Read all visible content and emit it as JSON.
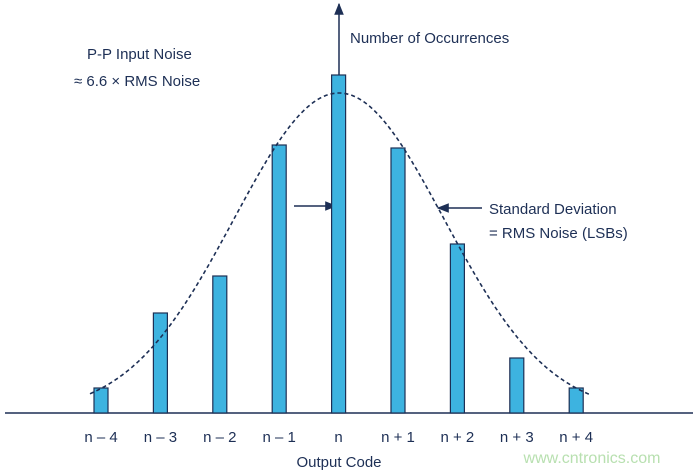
{
  "chart_data": {
    "type": "bar",
    "categories": [
      "n – 4",
      "n – 3",
      "n – 2",
      "n – 1",
      "n",
      "n + 1",
      "n + 2",
      "n + 3",
      "n + 4"
    ],
    "values": [
      25,
      100,
      137,
      268,
      338,
      265,
      169,
      55,
      25
    ],
    "color": "#3db3e0",
    "ylim": [
      0,
      410
    ],
    "y_label": "Number of Occurrences",
    "x_label": "Output Code",
    "annotations": [
      "P-P Input Noise",
      "≈ 6.6 × RMS Noise",
      "Standard Deviation",
      "= RMS Noise (LSBs)"
    ],
    "watermark": "www.cntronics.com"
  }
}
